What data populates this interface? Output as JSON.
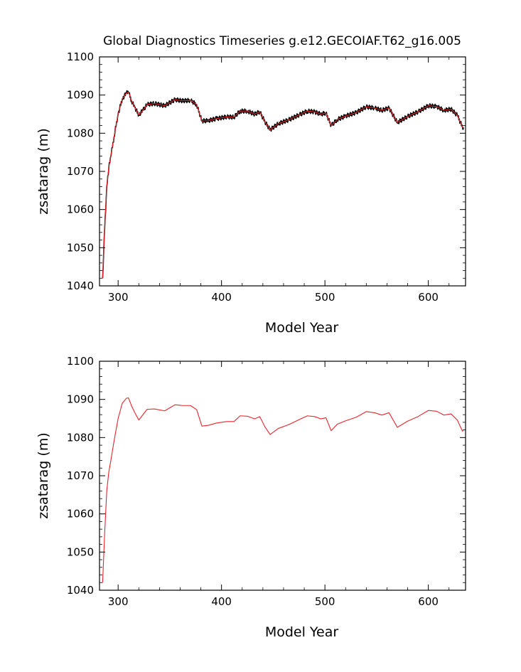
{
  "title": "Global Diagnostics Timeseries g.e12.GECOIAF.T62_g16.005",
  "chart_data": [
    {
      "id": "top",
      "type": "line",
      "xlabel": "Model Year",
      "ylabel": "zsatarag (m)",
      "xlim": [
        282,
        636
      ],
      "ylim": [
        1040,
        1100
      ],
      "xticks": [
        "300",
        "400",
        "500",
        "600"
      ],
      "yticks": [
        "1040",
        "1050",
        "1060",
        "1070",
        "1080",
        "1090",
        "1100"
      ],
      "series": [
        {
          "name": "raw",
          "color": "#000000",
          "noise": true,
          "x": [
            285,
            287,
            289,
            291,
            293,
            296,
            300,
            304,
            308,
            310,
            313,
            316,
            320,
            324,
            328,
            335,
            345,
            355,
            362,
            370,
            376,
            381,
            387,
            395,
            405,
            412,
            418,
            425,
            432,
            437,
            442,
            447,
            455,
            465,
            475,
            483,
            490,
            496,
            501,
            506,
            512,
            520,
            530,
            540,
            548,
            555,
            562,
            570,
            580,
            590,
            600,
            608,
            615,
            622,
            628,
            633,
            634
          ],
          "y": [
            1042,
            1055,
            1066,
            1071,
            1074,
            1079,
            1085,
            1089,
            1090.5,
            1090.8,
            1088.5,
            1086.8,
            1084.8,
            1086,
            1087.5,
            1087.8,
            1087.2,
            1088.8,
            1088.5,
            1088.6,
            1087.5,
            1083.2,
            1083.3,
            1083.8,
            1084.3,
            1084.2,
            1085.8,
            1085.8,
            1085,
            1085.6,
            1083,
            1080.9,
            1082.5,
            1083.5,
            1084.8,
            1085.8,
            1085.6,
            1085,
            1085.3,
            1082,
            1083.6,
            1084.5,
            1085.4,
            1086.9,
            1086.6,
            1086,
            1086.6,
            1082.8,
            1084.4,
            1085.6,
            1087.2,
            1087,
            1086,
            1086.3,
            1084.7,
            1081.6,
            1081.5
          ]
        },
        {
          "name": "smoothed",
          "color": "#e8242c",
          "noise": false,
          "x": [
            285,
            287,
            289,
            291,
            293,
            296,
            300,
            304,
            308,
            310,
            313,
            316,
            320,
            324,
            328,
            335,
            345,
            355,
            362,
            370,
            376,
            381,
            387,
            395,
            405,
            412,
            418,
            425,
            432,
            437,
            442,
            447,
            455,
            465,
            475,
            483,
            490,
            496,
            501,
            506,
            512,
            520,
            530,
            540,
            548,
            555,
            562,
            570,
            580,
            590,
            600,
            608,
            615,
            622,
            628,
            633,
            634
          ],
          "y": [
            1042,
            1055,
            1066,
            1071,
            1074,
            1079,
            1085,
            1089,
            1090.5,
            1090.8,
            1088.5,
            1086.8,
            1084.8,
            1086,
            1087.5,
            1087.8,
            1087.2,
            1088.8,
            1088.5,
            1088.6,
            1087.5,
            1083.2,
            1083.3,
            1083.8,
            1084.3,
            1084.2,
            1085.8,
            1085.8,
            1085,
            1085.6,
            1083,
            1080.9,
            1082.5,
            1083.5,
            1084.8,
            1085.8,
            1085.6,
            1085,
            1085.3,
            1082,
            1083.6,
            1084.5,
            1085.4,
            1086.9,
            1086.6,
            1086,
            1086.6,
            1082.8,
            1084.4,
            1085.6,
            1087.2,
            1087,
            1086,
            1086.3,
            1084.7,
            1081.6,
            1081.5
          ]
        }
      ]
    },
    {
      "id": "bottom",
      "type": "line",
      "xlabel": "Model Year",
      "ylabel": "zsatarag (m)",
      "xlim": [
        282,
        636
      ],
      "ylim": [
        1040,
        1100
      ],
      "xticks": [
        "300",
        "400",
        "500",
        "600"
      ],
      "yticks": [
        "1040",
        "1050",
        "1060",
        "1070",
        "1080",
        "1090",
        "1100"
      ],
      "series": [
        {
          "name": "smoothed",
          "color": "#e8242c",
          "noise": false,
          "x": [
            285,
            287,
            289,
            291,
            293,
            296,
            300,
            304,
            308,
            310,
            313,
            316,
            320,
            324,
            328,
            335,
            345,
            355,
            362,
            370,
            376,
            381,
            387,
            395,
            405,
            412,
            418,
            425,
            432,
            437,
            442,
            447,
            455,
            465,
            475,
            483,
            490,
            496,
            501,
            506,
            512,
            520,
            530,
            540,
            548,
            555,
            562,
            570,
            580,
            590,
            600,
            608,
            615,
            622,
            628,
            633,
            634
          ],
          "y": [
            1042,
            1055,
            1066,
            1071,
            1074,
            1079,
            1085,
            1089,
            1090.3,
            1090.4,
            1088.3,
            1086.6,
            1084.6,
            1086,
            1087.4,
            1087.5,
            1087,
            1088.6,
            1088.4,
            1088.4,
            1087.3,
            1083,
            1083.2,
            1083.8,
            1084.2,
            1084.2,
            1085.7,
            1085.6,
            1084.9,
            1085.5,
            1082.8,
            1080.8,
            1082.4,
            1083.4,
            1084.7,
            1085.7,
            1085.5,
            1084.9,
            1085.2,
            1081.8,
            1083.5,
            1084.4,
            1085.3,
            1086.8,
            1086.5,
            1085.9,
            1086.5,
            1082.7,
            1084.3,
            1085.5,
            1087.1,
            1086.9,
            1085.9,
            1086.2,
            1084.6,
            1081.7,
            1081.8
          ]
        }
      ]
    }
  ]
}
